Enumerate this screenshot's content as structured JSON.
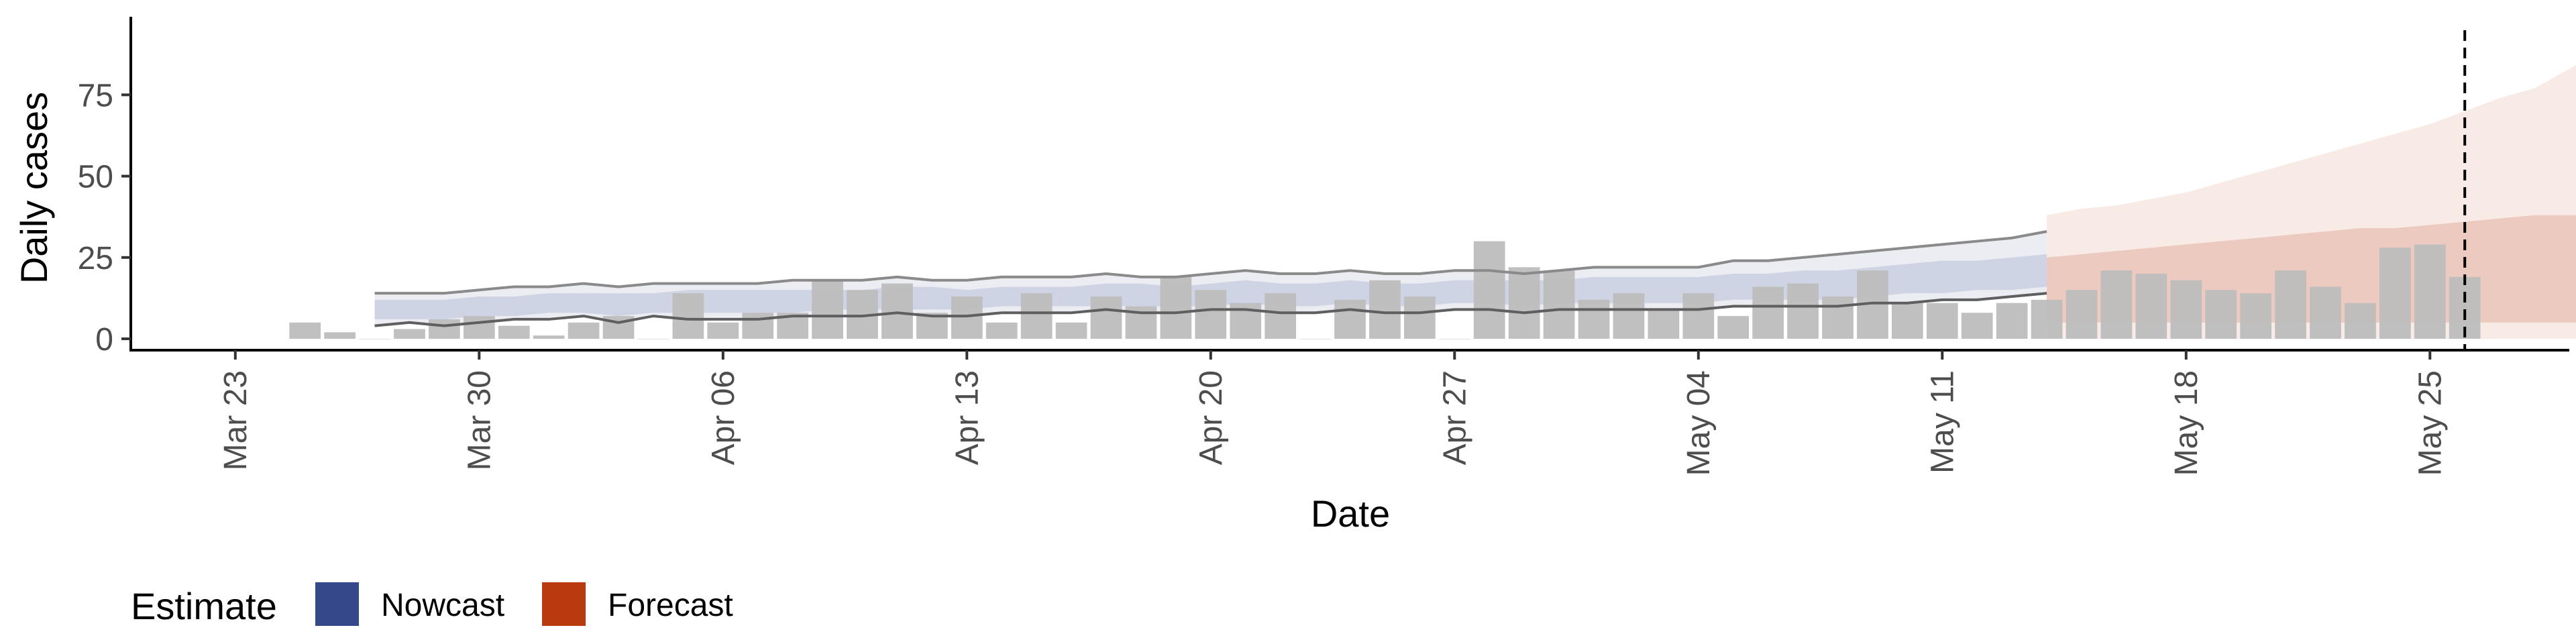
{
  "chart_data": {
    "type": "bar",
    "title": "",
    "xlabel": "Date",
    "ylabel": "Daily cases",
    "ylim": [
      -3.5,
      99
    ],
    "xlim_date": [
      "2020-03-20",
      "2020-05-29"
    ],
    "yticks": [
      0,
      25,
      50,
      75
    ],
    "xticks": [
      {
        "date": "2020-03-23",
        "label": "Mar 23"
      },
      {
        "date": "2020-03-30",
        "label": "Mar 30"
      },
      {
        "date": "2020-04-06",
        "label": "Apr 06"
      },
      {
        "date": "2020-04-13",
        "label": "Apr 13"
      },
      {
        "date": "2020-04-20",
        "label": "Apr 20"
      },
      {
        "date": "2020-04-27",
        "label": "Apr 27"
      },
      {
        "date": "2020-05-04",
        "label": "May 04"
      },
      {
        "date": "2020-05-11",
        "label": "May 11"
      },
      {
        "date": "2020-05-18",
        "label": "May 18"
      },
      {
        "date": "2020-05-25",
        "label": "May 25"
      }
    ],
    "bars": {
      "start_date": "2020-03-25",
      "values": [
        5,
        2,
        0,
        3,
        6,
        7,
        4,
        1,
        5,
        7,
        0,
        14,
        5,
        8,
        8,
        18,
        15,
        17,
        8,
        13,
        5,
        14,
        5,
        13,
        10,
        19,
        15,
        11,
        14,
        0,
        12,
        18,
        13,
        0,
        30,
        22,
        21,
        12,
        14,
        9,
        14,
        7,
        16,
        17,
        13,
        21,
        11,
        11,
        8,
        11,
        12,
        15,
        21,
        20,
        18,
        15,
        14,
        21,
        16,
        11,
        28,
        29,
        19
      ],
      "color": "#bdbdbd"
    },
    "nowcast": {
      "start_date": "2020-03-27",
      "outer_upper": [
        14,
        14,
        14,
        15,
        16,
        16,
        17,
        16,
        17,
        17,
        17,
        17,
        18,
        18,
        18,
        19,
        18,
        18,
        19,
        19,
        19,
        20,
        19,
        19,
        20,
        21,
        20,
        20,
        21,
        20,
        20,
        21,
        21,
        20,
        21,
        22,
        22,
        22,
        22,
        24,
        24,
        25,
        26,
        27,
        28,
        29,
        30,
        31,
        33
      ],
      "outer_lower": [
        4,
        5,
        4,
        5,
        6,
        6,
        7,
        5,
        7,
        6,
        6,
        6,
        7,
        7,
        7,
        8,
        7,
        7,
        8,
        8,
        8,
        9,
        8,
        8,
        9,
        9,
        8,
        8,
        9,
        8,
        8,
        9,
        9,
        8,
        9,
        9,
        9,
        9,
        9,
        10,
        10,
        10,
        10,
        11,
        11,
        12,
        12,
        13,
        14
      ],
      "inner_upper": [
        12,
        12,
        12,
        13,
        13,
        14,
        14,
        14,
        14,
        15,
        15,
        15,
        15,
        15,
        15,
        16,
        16,
        15,
        16,
        16,
        16,
        17,
        17,
        16,
        17,
        18,
        17,
        17,
        18,
        17,
        17,
        18,
        18,
        18,
        18,
        19,
        19,
        19,
        19,
        20,
        20,
        21,
        21,
        22,
        23,
        24,
        24,
        25,
        26
      ],
      "inner_lower": [
        6,
        6,
        6,
        7,
        7,
        8,
        8,
        7,
        8,
        8,
        8,
        8,
        8,
        9,
        9,
        9,
        9,
        9,
        10,
        10,
        10,
        10,
        10,
        10,
        10,
        11,
        10,
        10,
        11,
        10,
        10,
        11,
        11,
        10,
        11,
        11,
        11,
        11,
        11,
        12,
        12,
        12,
        12,
        13,
        14,
        14,
        15,
        15,
        16
      ],
      "color": "#3b4f8c"
    },
    "forecast": {
      "start_date": "2020-05-14",
      "outer_upper": [
        38,
        40,
        41,
        43,
        45,
        48,
        51,
        54,
        57,
        60,
        63,
        66,
        70,
        74,
        77,
        83,
        89,
        92
      ],
      "outer_lower": [
        0,
        0,
        0,
        0,
        0,
        0,
        0,
        0,
        0,
        0,
        0,
        0,
        0,
        0,
        0,
        0,
        0,
        0
      ],
      "inner_upper": [
        25,
        26,
        27,
        28,
        29,
        30,
        31,
        32,
        33,
        34,
        34,
        35,
        36,
        37,
        38,
        38,
        38,
        37
      ],
      "inner_lower": [
        5,
        5,
        5,
        5,
        5,
        5,
        5,
        5,
        5,
        5,
        5,
        5,
        5,
        5,
        5,
        5,
        5,
        5
      ],
      "color": "#b83a0e"
    },
    "vline_date": "2020-05-26",
    "legend": {
      "position": "bottom",
      "title": "Estimate",
      "items": [
        {
          "label": "Nowcast",
          "color": "#34488a"
        },
        {
          "label": "Forecast",
          "color": "#b83a0e"
        }
      ]
    }
  }
}
